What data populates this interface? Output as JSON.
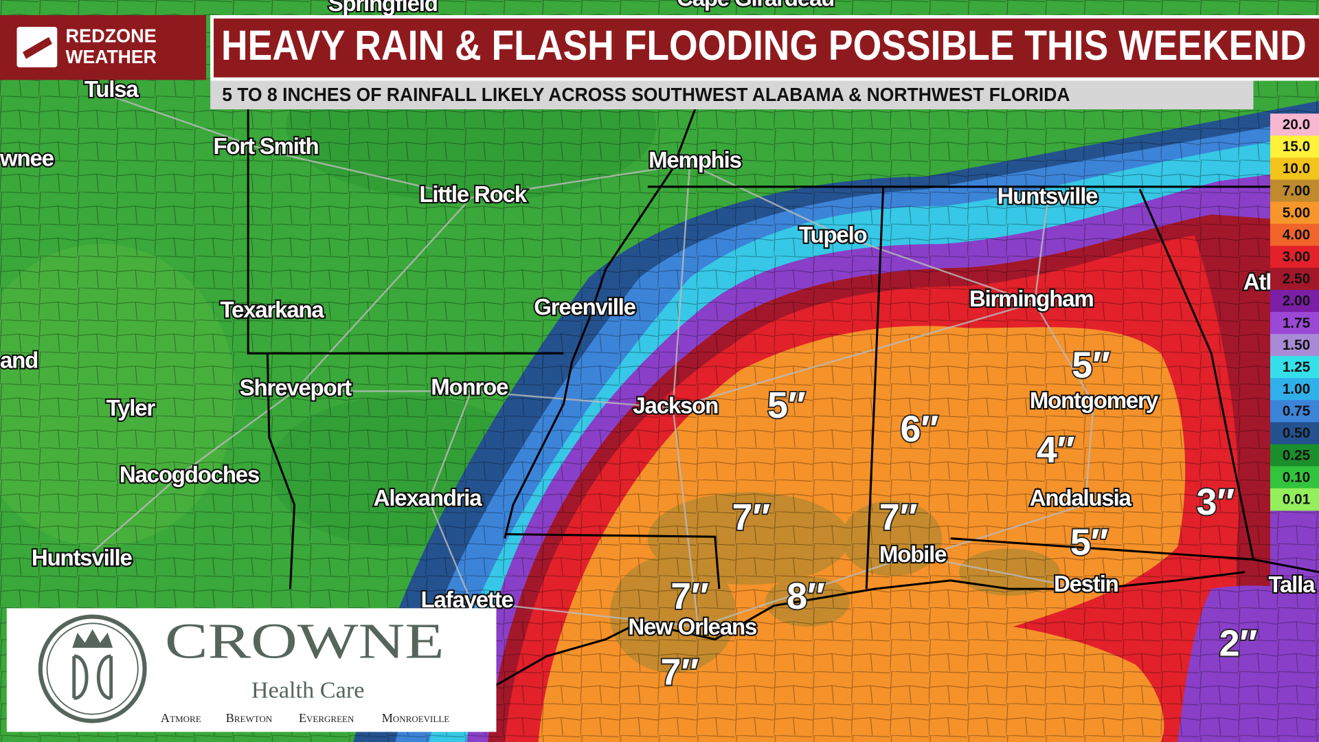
{
  "header": {
    "brand": [
      "REDZONE",
      "WEATHER"
    ],
    "title": "HEAVY RAIN & FLASH FLOODING POSSIBLE THIS WEEKEND",
    "subtitle": "5 TO 8 INCHES OF RAINFALL LIKELY ACROSS SOUTHWEST ALABAMA & NORTHWEST FLORIDA"
  },
  "cities": [
    "Springfield",
    "Cape Girardeau",
    "Tulsa",
    "wnee",
    "Fort Smith",
    "Memphis",
    "Little Rock",
    "Tupelo",
    "Huntsville",
    "Birmingham",
    "Atl",
    "Texarkana",
    "Greenville",
    "and",
    "Shreveport",
    "Monroe",
    "Jackson",
    "Montgomery",
    "Tyler",
    "Nacogdoches",
    "Alexandria",
    "Andalusia",
    "Huntsville",
    "Mobile",
    "Destin",
    "Lafayette",
    "Talla",
    "New Orleans"
  ],
  "rainfall_labels": [
    "5″",
    "5″",
    "6″",
    "4″",
    "3″",
    "7″",
    "7″",
    "5″",
    "7″",
    "8″",
    "2″",
    "7″"
  ],
  "legend": [
    {
      "label": "20.0",
      "color": "#f7b7d0"
    },
    {
      "label": "15.0",
      "color": "#fff23a"
    },
    {
      "label": "10.0",
      "color": "#f3c41c"
    },
    {
      "label": "7.00",
      "color": "#c08a2e"
    },
    {
      "label": "5.00",
      "color": "#f7962b"
    },
    {
      "label": "4.00",
      "color": "#f1652a"
    },
    {
      "label": "3.00",
      "color": "#e2212a"
    },
    {
      "label": "2.50",
      "color": "#a3172a"
    },
    {
      "label": "2.00",
      "color": "#7a1fa6"
    },
    {
      "label": "1.75",
      "color": "#9b48d6"
    },
    {
      "label": "1.50",
      "color": "#a88ad6"
    },
    {
      "label": "1.25",
      "color": "#36e0ea"
    },
    {
      "label": "1.00",
      "color": "#2fb0ea"
    },
    {
      "label": "0.75",
      "color": "#3c84d8"
    },
    {
      "label": "0.50",
      "color": "#24528f"
    },
    {
      "label": "0.25",
      "color": "#1b8f2c"
    },
    {
      "label": "0.10",
      "color": "#32c43c"
    },
    {
      "label": "0.01",
      "color": "#93ef5c"
    }
  ],
  "sponsor": {
    "name": "CROWNE",
    "tagline": "Health Care",
    "locations": [
      "Atmore",
      "Brewton",
      "Evergreen",
      "Monroeville"
    ]
  }
}
